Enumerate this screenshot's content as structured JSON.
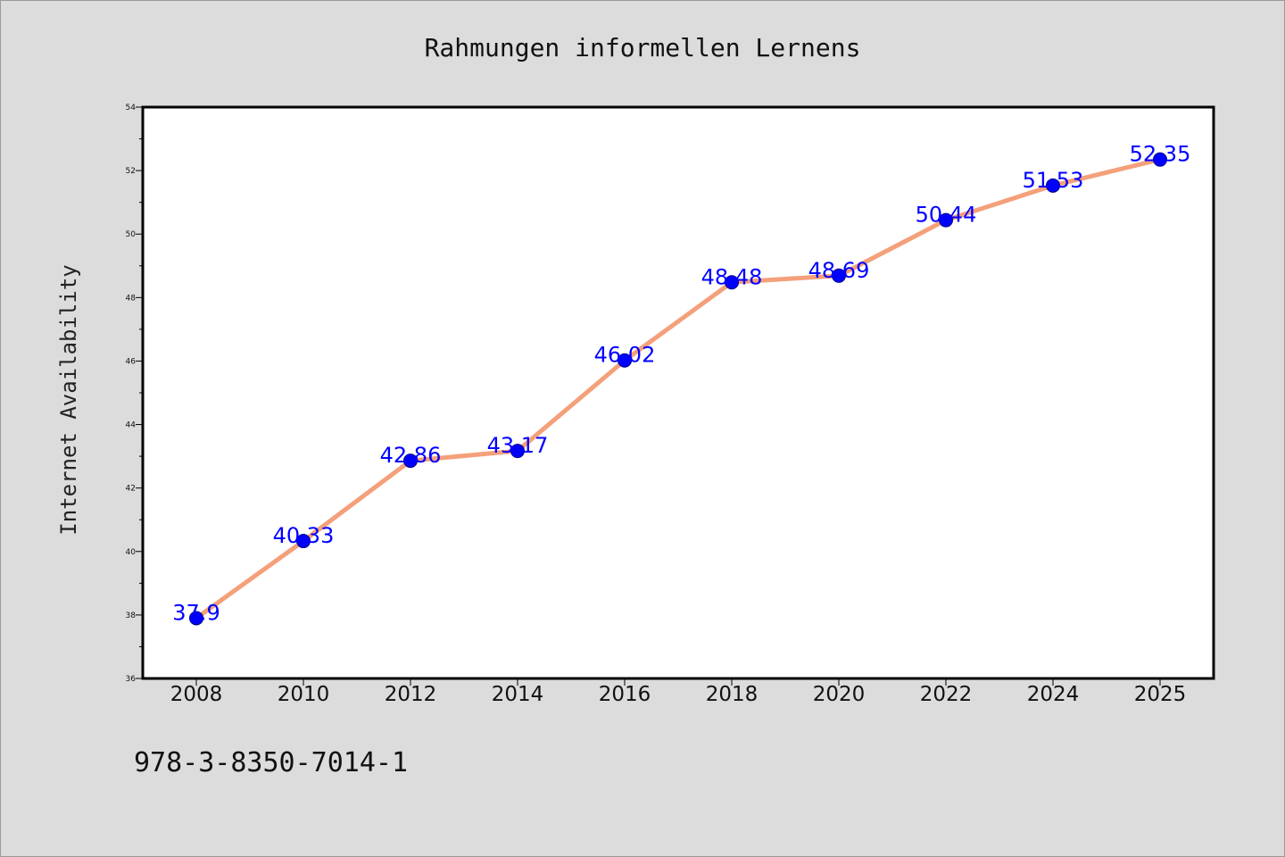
{
  "chart_data": {
    "type": "line",
    "title": "Rahmungen informellen Lernens",
    "ylabel": "Internet Availability",
    "xlabel": "",
    "categories": [
      "2008",
      "2010",
      "2012",
      "2014",
      "2016",
      "2018",
      "2020",
      "2022",
      "2024",
      "2025"
    ],
    "values": [
      37.9,
      40.33,
      42.86,
      43.17,
      46.02,
      48.48,
      48.69,
      50.44,
      51.53,
      52.35
    ],
    "data_labels": [
      "37.9",
      "40.33",
      "42.86",
      "43.17",
      "46.02",
      "48.48",
      "48.69",
      "50.44",
      "51.53",
      "52.35"
    ],
    "ylim": [
      36,
      54
    ],
    "yticks": [
      36,
      38,
      40,
      42,
      44,
      46,
      48,
      50,
      52,
      54
    ],
    "grid": false,
    "colors": {
      "line": "#f4a07a",
      "marker": "#0000ff",
      "labels": "#0000ff",
      "background": "#dcdcdc",
      "plot_background": "#ffffff"
    }
  },
  "footnote": "978-3-8350-7014-1"
}
